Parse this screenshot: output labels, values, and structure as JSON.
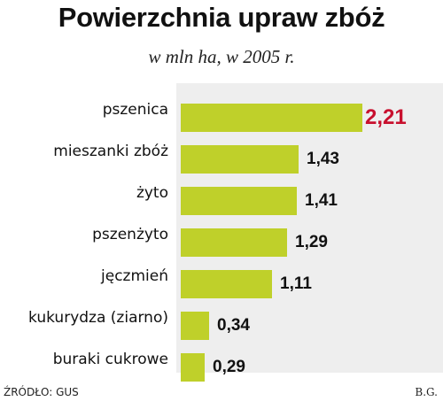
{
  "chart_data": {
    "type": "bar",
    "orientation": "horizontal",
    "title": "Powierzchnia upraw zbóż",
    "subtitle": "w mln ha, w 2005 r.",
    "categories": [
      "pszenica",
      "mieszanki zbóż",
      "żyto",
      "pszenżyto",
      "jęczmień",
      "kukurydza (ziarno)",
      "buraki cukrowe"
    ],
    "values": [
      2.21,
      1.43,
      1.41,
      1.29,
      1.11,
      0.34,
      0.29
    ],
    "value_labels": [
      "2,21",
      "1,43",
      "1,41",
      "1,29",
      "1,11",
      "0,34",
      "0,29"
    ],
    "xlim": [
      0,
      2.21
    ],
    "grid": false,
    "bar_color": "#bfd02a",
    "highlight_color": "#c8102e",
    "background_color": "#eeeeee"
  },
  "footer": {
    "source": "ŹRÓDŁO: GUS",
    "author": "B.G."
  }
}
